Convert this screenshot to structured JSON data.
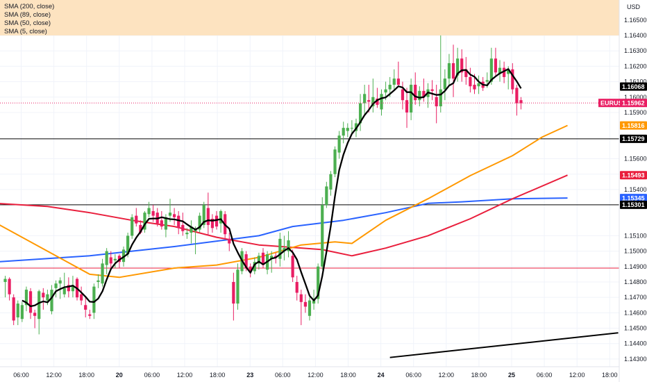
{
  "indicators": [
    {
      "label": "SMA (200, close)",
      "color": "#2962ff"
    },
    {
      "label": "SMA (89, close)",
      "color": "#e91e3c"
    },
    {
      "label": "SMA (50, close)",
      "color": "#ff9800"
    },
    {
      "label": "SMA (5, close)",
      "color": "#000000"
    }
  ],
  "currency": "USD",
  "symbol": "EURUSD",
  "colors": {
    "up": "#26a69a",
    "up_fill": "#4caf50",
    "down": "#e91e63",
    "highlight": "#fde3c0",
    "grid": "#f0f3fa"
  },
  "chart_data": {
    "type": "candlestick",
    "y_ticks": [
      "1.16500",
      "1.16400",
      "1.16300",
      "1.16200",
      "1.16100",
      "1.16000",
      "1.15900",
      "1.15600",
      "1.15500",
      "1.15400",
      "1.15100",
      "1.15000",
      "1.14900",
      "1.14800",
      "1.14700",
      "1.14600",
      "1.14500",
      "1.14400",
      "1.14300"
    ],
    "ylim": [
      1.1425,
      1.1663
    ],
    "x_ticks": [
      "06:00",
      "12:00",
      "18:00",
      "20",
      "06:00",
      "12:00",
      "18:00",
      "23",
      "06:00",
      "12:00",
      "18:00",
      "24",
      "06:00",
      "12:00",
      "18:00",
      "25",
      "06:00",
      "12:00",
      "18:00"
    ],
    "last_price": {
      "label": "1.15962",
      "value": 1.15962
    },
    "price_badges": [
      {
        "label": "1.16068",
        "value": 1.16068,
        "color": "#000000"
      },
      {
        "label": "1.15816",
        "value": 1.15816,
        "color": "#ff9800"
      },
      {
        "label": "1.15729",
        "value": 1.15729,
        "color": "#000000"
      },
      {
        "label": "1.15493",
        "value": 1.15493,
        "color": "#e91e3c"
      },
      {
        "label": "1.15345",
        "value": 1.15345,
        "color": "#2962ff"
      },
      {
        "label": "1.15301",
        "value": 1.15301,
        "color": "#000000"
      }
    ],
    "horizontal_lines": [
      {
        "value": 1.15729,
        "color": "#000000"
      },
      {
        "value": 1.15301,
        "color": "#000000"
      },
      {
        "value": 1.1489,
        "color": "#e91e3c"
      }
    ],
    "resistance_zone": [
      1.164,
      1.1663
    ],
    "trendline": [
      {
        "bar": 91,
        "value": 1.1431
      },
      {
        "bar": 145,
        "value": 1.1447
      }
    ],
    "sma200": [
      [
        -2,
        1.1493
      ],
      [
        20,
        1.1497
      ],
      [
        40,
        1.1503
      ],
      [
        60,
        1.151
      ],
      [
        68,
        1.1516
      ],
      [
        80,
        1.152
      ],
      [
        90,
        1.1525
      ],
      [
        100,
        1.1531
      ],
      [
        108,
        1.1532
      ],
      [
        120,
        1.1534
      ],
      [
        133,
        1.15345
      ]
    ],
    "sma89": [
      [
        -2,
        1.1531
      ],
      [
        10,
        1.1529
      ],
      [
        20,
        1.1525
      ],
      [
        30,
        1.152
      ],
      [
        40,
        1.1516
      ],
      [
        50,
        1.1509
      ],
      [
        60,
        1.1504
      ],
      [
        75,
        1.1501
      ],
      [
        82,
        1.1497
      ],
      [
        90,
        1.1502
      ],
      [
        100,
        1.151
      ],
      [
        110,
        1.1521
      ],
      [
        120,
        1.1534
      ],
      [
        133,
        1.15493
      ]
    ],
    "sma50": [
      [
        -2,
        1.1518
      ],
      [
        10,
        1.15
      ],
      [
        20,
        1.1485
      ],
      [
        27,
        1.1483
      ],
      [
        40,
        1.1489
      ],
      [
        50,
        1.1491
      ],
      [
        60,
        1.1496
      ],
      [
        70,
        1.1504
      ],
      [
        78,
        1.1506
      ],
      [
        82,
        1.1505
      ],
      [
        90,
        1.152
      ],
      [
        100,
        1.1534
      ],
      [
        110,
        1.1549
      ],
      [
        120,
        1.1562
      ],
      [
        127,
        1.1574
      ],
      [
        133,
        1.15816
      ]
    ],
    "bars": [
      {
        "o": 1.148,
        "h": 1.1484,
        "l": 1.147,
        "c": 1.1482
      },
      {
        "o": 1.1482,
        "h": 1.1483,
        "l": 1.1468,
        "c": 1.1472
      },
      {
        "o": 1.147,
        "h": 1.1472,
        "l": 1.1452,
        "c": 1.1455
      },
      {
        "o": 1.1457,
        "h": 1.1468,
        "l": 1.1452,
        "c": 1.1466
      },
      {
        "o": 1.1456,
        "h": 1.1467,
        "l": 1.1454,
        "c": 1.1465
      },
      {
        "o": 1.1465,
        "h": 1.1477,
        "l": 1.1461,
        "c": 1.1475
      },
      {
        "o": 1.1474,
        "h": 1.1476,
        "l": 1.1456,
        "c": 1.146
      },
      {
        "o": 1.146,
        "h": 1.1462,
        "l": 1.145,
        "c": 1.1458
      },
      {
        "o": 1.1456,
        "h": 1.1475,
        "l": 1.1446,
        "c": 1.1474
      },
      {
        "o": 1.1473,
        "h": 1.1476,
        "l": 1.1462,
        "c": 1.147
      },
      {
        "o": 1.1468,
        "h": 1.1475,
        "l": 1.1465,
        "c": 1.1472
      },
      {
        "o": 1.1461,
        "h": 1.1478,
        "l": 1.1459,
        "c": 1.1475
      },
      {
        "o": 1.1476,
        "h": 1.1481,
        "l": 1.147,
        "c": 1.1479
      },
      {
        "o": 1.1479,
        "h": 1.1483,
        "l": 1.1469,
        "c": 1.1481
      },
      {
        "o": 1.1472,
        "h": 1.1486,
        "l": 1.147,
        "c": 1.1476
      },
      {
        "o": 1.1478,
        "h": 1.1483,
        "l": 1.147,
        "c": 1.1474
      },
      {
        "o": 1.1474,
        "h": 1.1484,
        "l": 1.147,
        "c": 1.1478
      },
      {
        "o": 1.1482,
        "h": 1.1483,
        "l": 1.1468,
        "c": 1.147
      },
      {
        "o": 1.1472,
        "h": 1.1477,
        "l": 1.1465,
        "c": 1.1468
      },
      {
        "o": 1.1465,
        "h": 1.147,
        "l": 1.1457,
        "c": 1.1462
      },
      {
        "o": 1.1459,
        "h": 1.1462,
        "l": 1.1456,
        "c": 1.1458
      },
      {
        "o": 1.146,
        "h": 1.1479,
        "l": 1.1456,
        "c": 1.1477
      },
      {
        "o": 1.148,
        "h": 1.1485,
        "l": 1.1476,
        "c": 1.1481
      },
      {
        "o": 1.1479,
        "h": 1.1495,
        "l": 1.1477,
        "c": 1.1492
      },
      {
        "o": 1.1491,
        "h": 1.1502,
        "l": 1.1485,
        "c": 1.15
      },
      {
        "o": 1.1496,
        "h": 1.15,
        "l": 1.1489,
        "c": 1.1492
      },
      {
        "o": 1.1494,
        "h": 1.1498,
        "l": 1.1489,
        "c": 1.1495
      },
      {
        "o": 1.1497,
        "h": 1.1498,
        "l": 1.1489,
        "c": 1.1493
      },
      {
        "o": 1.1493,
        "h": 1.1503,
        "l": 1.149,
        "c": 1.1501
      },
      {
        "o": 1.1498,
        "h": 1.1512,
        "l": 1.1496,
        "c": 1.151
      },
      {
        "o": 1.151,
        "h": 1.1524,
        "l": 1.1508,
        "c": 1.1522
      },
      {
        "o": 1.1523,
        "h": 1.1528,
        "l": 1.1516,
        "c": 1.1518
      },
      {
        "o": 1.1517,
        "h": 1.152,
        "l": 1.1511,
        "c": 1.1512
      },
      {
        "o": 1.1514,
        "h": 1.1526,
        "l": 1.1512,
        "c": 1.1525
      },
      {
        "o": 1.1524,
        "h": 1.1532,
        "l": 1.1522,
        "c": 1.1528
      },
      {
        "o": 1.1526,
        "h": 1.153,
        "l": 1.1519,
        "c": 1.1523
      },
      {
        "o": 1.1525,
        "h": 1.1528,
        "l": 1.1516,
        "c": 1.1518
      },
      {
        "o": 1.152,
        "h": 1.1526,
        "l": 1.1514,
        "c": 1.1516
      },
      {
        "o": 1.1514,
        "h": 1.1524,
        "l": 1.1509,
        "c": 1.1522
      },
      {
        "o": 1.1523,
        "h": 1.1534,
        "l": 1.1519,
        "c": 1.1525
      },
      {
        "o": 1.1524,
        "h": 1.1528,
        "l": 1.1517,
        "c": 1.1522
      },
      {
        "o": 1.1523,
        "h": 1.1526,
        "l": 1.1511,
        "c": 1.1515
      },
      {
        "o": 1.1517,
        "h": 1.1525,
        "l": 1.151,
        "c": 1.1513
      },
      {
        "o": 1.1511,
        "h": 1.1515,
        "l": 1.1508,
        "c": 1.1512
      },
      {
        "o": 1.1512,
        "h": 1.152,
        "l": 1.1505,
        "c": 1.1516
      },
      {
        "o": 1.1513,
        "h": 1.1516,
        "l": 1.1498,
        "c": 1.1514
      },
      {
        "o": 1.1514,
        "h": 1.1525,
        "l": 1.1512,
        "c": 1.1523
      },
      {
        "o": 1.1517,
        "h": 1.1532,
        "l": 1.1515,
        "c": 1.153
      },
      {
        "o": 1.1528,
        "h": 1.1538,
        "l": 1.151,
        "c": 1.1517
      },
      {
        "o": 1.1521,
        "h": 1.1524,
        "l": 1.1512,
        "c": 1.1515
      },
      {
        "o": 1.1523,
        "h": 1.1526,
        "l": 1.1514,
        "c": 1.1516
      },
      {
        "o": 1.1518,
        "h": 1.1527,
        "l": 1.1512,
        "c": 1.1526
      },
      {
        "o": 1.1524,
        "h": 1.1526,
        "l": 1.1508,
        "c": 1.1511
      },
      {
        "o": 1.1508,
        "h": 1.1512,
        "l": 1.15,
        "c": 1.1505
      },
      {
        "o": 1.148,
        "h": 1.1486,
        "l": 1.1455,
        "c": 1.1466
      },
      {
        "o": 1.1466,
        "h": 1.1492,
        "l": 1.1462,
        "c": 1.1488
      },
      {
        "o": 1.1487,
        "h": 1.1502,
        "l": 1.1485,
        "c": 1.15
      },
      {
        "o": 1.1498,
        "h": 1.15,
        "l": 1.1487,
        "c": 1.1489
      },
      {
        "o": 1.149,
        "h": 1.1492,
        "l": 1.1483,
        "c": 1.1487
      },
      {
        "o": 1.1487,
        "h": 1.1496,
        "l": 1.1485,
        "c": 1.1493
      },
      {
        "o": 1.1492,
        "h": 1.1499,
        "l": 1.1488,
        "c": 1.1497
      },
      {
        "o": 1.1499,
        "h": 1.1502,
        "l": 1.1489,
        "c": 1.1491
      },
      {
        "o": 1.1488,
        "h": 1.15,
        "l": 1.1485,
        "c": 1.1498
      },
      {
        "o": 1.1495,
        "h": 1.15,
        "l": 1.1486,
        "c": 1.1497
      },
      {
        "o": 1.1497,
        "h": 1.1499,
        "l": 1.1492,
        "c": 1.1496
      },
      {
        "o": 1.1495,
        "h": 1.1512,
        "l": 1.149,
        "c": 1.1508
      },
      {
        "o": 1.15,
        "h": 1.151,
        "l": 1.1494,
        "c": 1.1502
      },
      {
        "o": 1.15,
        "h": 1.1513,
        "l": 1.1496,
        "c": 1.1507
      },
      {
        "o": 1.1497,
        "h": 1.1501,
        "l": 1.148,
        "c": 1.1483
      },
      {
        "o": 1.148,
        "h": 1.1484,
        "l": 1.1468,
        "c": 1.1473
      },
      {
        "o": 1.1472,
        "h": 1.1475,
        "l": 1.1452,
        "c": 1.1467
      },
      {
        "o": 1.1467,
        "h": 1.1472,
        "l": 1.146,
        "c": 1.1464
      },
      {
        "o": 1.1458,
        "h": 1.147,
        "l": 1.1455,
        "c": 1.1468
      },
      {
        "o": 1.1466,
        "h": 1.1475,
        "l": 1.1462,
        "c": 1.1468
      },
      {
        "o": 1.1469,
        "h": 1.1492,
        "l": 1.1466,
        "c": 1.149
      },
      {
        "o": 1.149,
        "h": 1.1535,
        "l": 1.1488,
        "c": 1.153
      },
      {
        "o": 1.153,
        "h": 1.1545,
        "l": 1.1528,
        "c": 1.1542
      },
      {
        "o": 1.154,
        "h": 1.1552,
        "l": 1.1536,
        "c": 1.155
      },
      {
        "o": 1.155,
        "h": 1.1568,
        "l": 1.1548,
        "c": 1.1566
      },
      {
        "o": 1.1564,
        "h": 1.1578,
        "l": 1.156,
        "c": 1.1575
      },
      {
        "o": 1.1575,
        "h": 1.1584,
        "l": 1.157,
        "c": 1.158
      },
      {
        "o": 1.1578,
        "h": 1.1583,
        "l": 1.1574,
        "c": 1.158
      },
      {
        "o": 1.158,
        "h": 1.1585,
        "l": 1.1576,
        "c": 1.158
      },
      {
        "o": 1.1578,
        "h": 1.1586,
        "l": 1.1574,
        "c": 1.1583
      },
      {
        "o": 1.1583,
        "h": 1.1602,
        "l": 1.1578,
        "c": 1.1596
      },
      {
        "o": 1.1596,
        "h": 1.1608,
        "l": 1.1588,
        "c": 1.1602
      },
      {
        "o": 1.1598,
        "h": 1.1608,
        "l": 1.159,
        "c": 1.1597
      },
      {
        "o": 1.1594,
        "h": 1.1612,
        "l": 1.159,
        "c": 1.16
      },
      {
        "o": 1.1599,
        "h": 1.1606,
        "l": 1.1593,
        "c": 1.1595
      },
      {
        "o": 1.1592,
        "h": 1.1605,
        "l": 1.1588,
        "c": 1.1602
      },
      {
        "o": 1.1603,
        "h": 1.161,
        "l": 1.1598,
        "c": 1.1605
      },
      {
        "o": 1.1605,
        "h": 1.1613,
        "l": 1.16,
        "c": 1.1608
      },
      {
        "o": 1.1608,
        "h": 1.1618,
        "l": 1.1605,
        "c": 1.1612
      },
      {
        "o": 1.1612,
        "h": 1.1623,
        "l": 1.1607,
        "c": 1.1608
      },
      {
        "o": 1.1605,
        "h": 1.161,
        "l": 1.1592,
        "c": 1.1598
      },
      {
        "o": 1.1598,
        "h": 1.1606,
        "l": 1.158,
        "c": 1.159
      },
      {
        "o": 1.159,
        "h": 1.1612,
        "l": 1.1585,
        "c": 1.1608
      },
      {
        "o": 1.1608,
        "h": 1.1616,
        "l": 1.1595,
        "c": 1.1598
      },
      {
        "o": 1.1598,
        "h": 1.1607,
        "l": 1.1594,
        "c": 1.1604
      },
      {
        "o": 1.1604,
        "h": 1.1612,
        "l": 1.1597,
        "c": 1.16
      },
      {
        "o": 1.16,
        "h": 1.1609,
        "l": 1.1593,
        "c": 1.1605
      },
      {
        "o": 1.1605,
        "h": 1.1611,
        "l": 1.1598,
        "c": 1.1604
      },
      {
        "o": 1.16,
        "h": 1.1608,
        "l": 1.1583,
        "c": 1.1594
      },
      {
        "o": 1.1594,
        "h": 1.164,
        "l": 1.159,
        "c": 1.1605
      },
      {
        "o": 1.1605,
        "h": 1.1618,
        "l": 1.1598,
        "c": 1.1612
      },
      {
        "o": 1.1612,
        "h": 1.1628,
        "l": 1.1607,
        "c": 1.1622
      },
      {
        "o": 1.1622,
        "h": 1.1634,
        "l": 1.16,
        "c": 1.1612
      },
      {
        "o": 1.1614,
        "h": 1.1632,
        "l": 1.161,
        "c": 1.1625
      },
      {
        "o": 1.1625,
        "h": 1.1631,
        "l": 1.161,
        "c": 1.1616
      },
      {
        "o": 1.1618,
        "h": 1.1626,
        "l": 1.1608,
        "c": 1.1613
      },
      {
        "o": 1.1613,
        "h": 1.1619,
        "l": 1.1603,
        "c": 1.1607
      },
      {
        "o": 1.1608,
        "h": 1.1615,
        "l": 1.1602,
        "c": 1.1605
      },
      {
        "o": 1.1607,
        "h": 1.1614,
        "l": 1.1602,
        "c": 1.1609
      },
      {
        "o": 1.161,
        "h": 1.1613,
        "l": 1.1604,
        "c": 1.1606
      },
      {
        "o": 1.161,
        "h": 1.1616,
        "l": 1.1606,
        "c": 1.1611
      },
      {
        "o": 1.161,
        "h": 1.1632,
        "l": 1.1608,
        "c": 1.1625
      },
      {
        "o": 1.1625,
        "h": 1.1632,
        "l": 1.1614,
        "c": 1.1616
      },
      {
        "o": 1.1615,
        "h": 1.1624,
        "l": 1.161,
        "c": 1.1619
      },
      {
        "o": 1.1619,
        "h": 1.1623,
        "l": 1.1609,
        "c": 1.1613
      },
      {
        "o": 1.1615,
        "h": 1.162,
        "l": 1.1605,
        "c": 1.1618
      },
      {
        "o": 1.1618,
        "h": 1.1622,
        "l": 1.1602,
        "c": 1.1605
      },
      {
        "o": 1.1606,
        "h": 1.1608,
        "l": 1.1588,
        "c": 1.1596
      },
      {
        "o": 1.1598,
        "h": 1.16,
        "l": 1.1592,
        "c": 1.1596
      }
    ]
  }
}
